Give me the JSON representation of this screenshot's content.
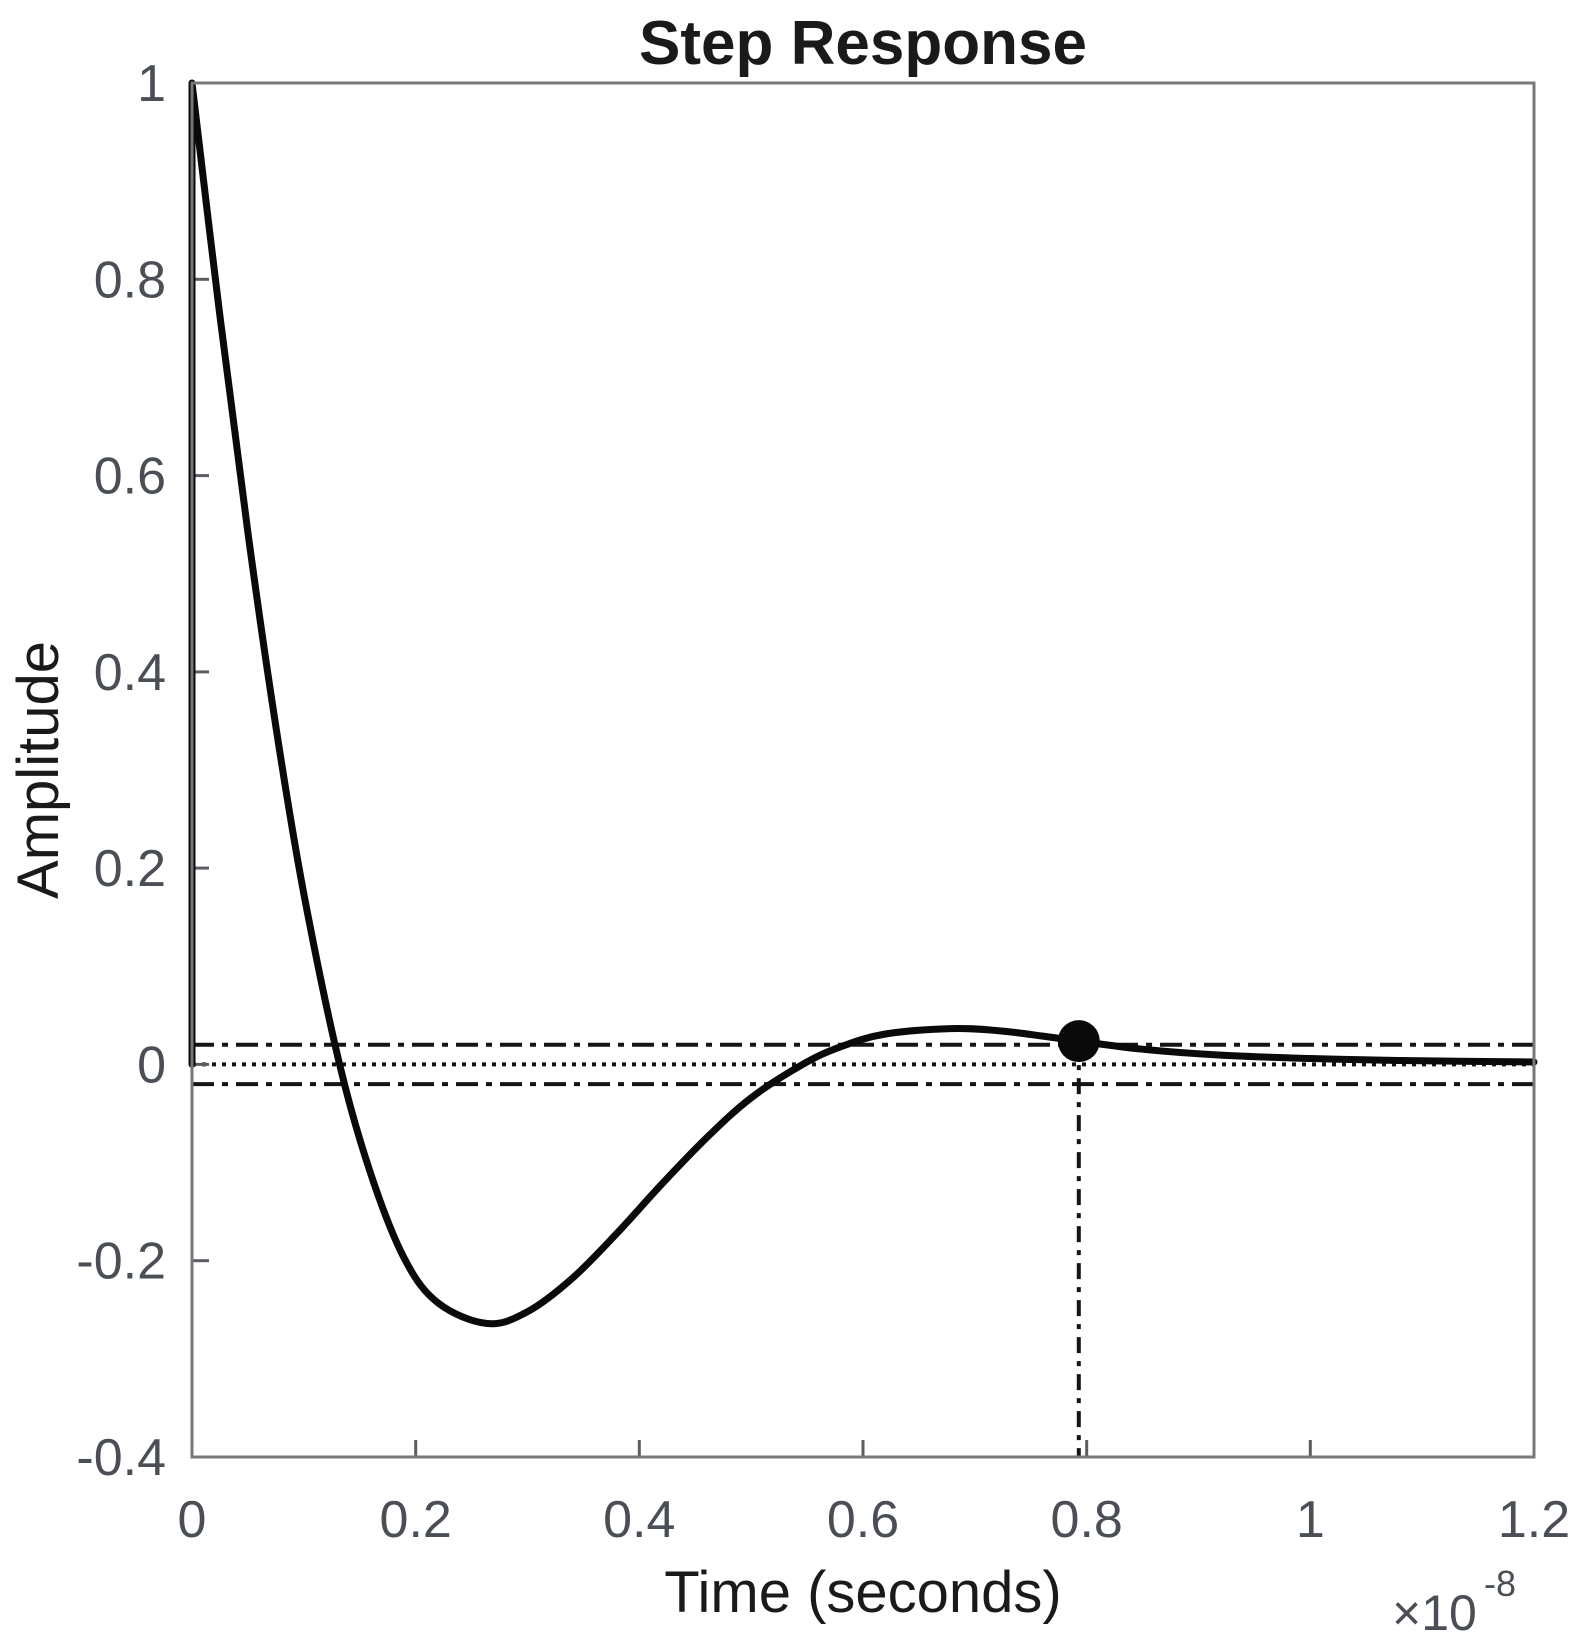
{
  "figure": {
    "background": "#ffffff"
  },
  "chart_data": {
    "type": "line",
    "title": "Step Response",
    "xlabel": "Time (seconds)",
    "ylabel": "Amplitude",
    "x_unit_multiplier": {
      "base": "×10",
      "exponent": "-8"
    },
    "x_in_units_of": "1e-8 seconds",
    "xlim": [
      0,
      1.2
    ],
    "ylim": [
      -0.4,
      1
    ],
    "xticks": [
      0,
      0.2,
      0.4,
      0.6,
      0.8,
      1,
      1.2
    ],
    "xtick_labels": [
      "0",
      "0.2",
      "0.4",
      "0.6",
      "0.8",
      "1",
      "1.2"
    ],
    "yticks": [
      1,
      0.8,
      0.6,
      0.4,
      0.2,
      0,
      -0.2,
      -0.4
    ],
    "ytick_labels": [
      "1",
      "0.8",
      "0.6",
      "0.4",
      "0.2",
      "0",
      "-0.2",
      "-0.4"
    ],
    "grid": false,
    "legend": false,
    "series": [
      {
        "name": "step response",
        "points": [
          [
            0,
            0
          ],
          [
            0,
            1.0
          ],
          [
            0.025,
            0.762
          ],
          [
            0.05,
            0.542
          ],
          [
            0.075,
            0.344
          ],
          [
            0.1,
            0.174
          ],
          [
            0.132,
            0.0
          ],
          [
            0.16,
            -0.112
          ],
          [
            0.19,
            -0.198
          ],
          [
            0.22,
            -0.243
          ],
          [
            0.264,
            -0.264
          ],
          [
            0.3,
            -0.252
          ],
          [
            0.34,
            -0.218
          ],
          [
            0.38,
            -0.172
          ],
          [
            0.42,
            -0.122
          ],
          [
            0.46,
            -0.075
          ],
          [
            0.5,
            -0.034
          ],
          [
            0.546,
            0.0
          ],
          [
            0.58,
            0.018
          ],
          [
            0.62,
            0.031
          ],
          [
            0.678,
            0.0365
          ],
          [
            0.72,
            0.0345
          ],
          [
            0.76,
            0.029
          ],
          [
            0.793,
            0.0238
          ],
          [
            0.85,
            0.0155
          ],
          [
            0.92,
            0.0095
          ],
          [
            1.0,
            0.006
          ],
          [
            1.08,
            0.004
          ],
          [
            1.2,
            0.0025
          ]
        ]
      }
    ],
    "reference_lines": {
      "steady_state_value": 0,
      "settling_band_upper": 0.02,
      "settling_band_lower": -0.02
    },
    "settling_marker": {
      "t": 0.793,
      "amplitude": 0.0238
    }
  },
  "colors": {
    "curve": "#0a0a0a",
    "axis_box": "#75787b",
    "tick_mark": "#5a5d62",
    "tick_label_text": "#4a4e55",
    "label_text": "#1a1a1a",
    "reference_line": "#141414",
    "marker_fill": "#0a0a0a"
  }
}
